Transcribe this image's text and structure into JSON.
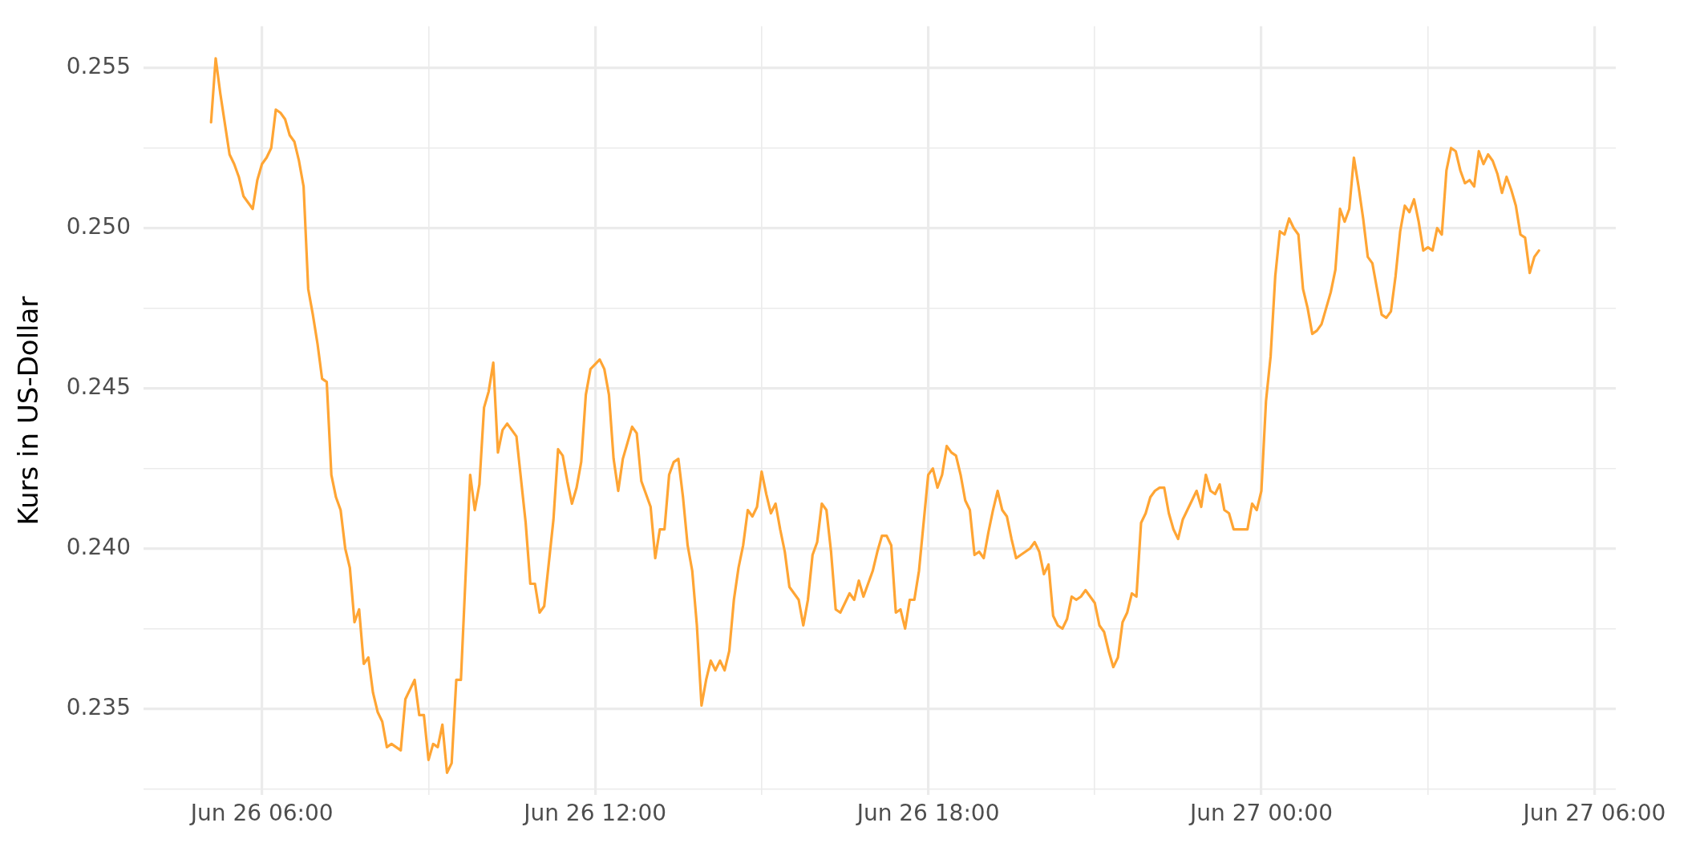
{
  "chart_data": {
    "type": "line",
    "ylabel": "Kurs in US-Dollar",
    "x": [
      "--06-26T05:05",
      "--06-26T05:10",
      "--06-26T05:15",
      "--06-26T05:25",
      "--06-26T05:30",
      "--06-26T05:35",
      "--06-26T05:40",
      "--06-26T05:45",
      "--06-26T05:50",
      "--06-26T05:55",
      "--06-26T06:00",
      "--06-26T06:05",
      "--06-26T06:10",
      "--06-26T06:15",
      "--06-26T06:20",
      "--06-26T06:25",
      "--06-26T06:30",
      "--06-26T06:35",
      "--06-26T06:40",
      "--06-26T06:45",
      "--06-26T06:50",
      "--06-26T06:55",
      "--06-26T07:00",
      "--06-26T07:05",
      "--06-26T07:10",
      "--06-26T07:15",
      "--06-26T07:20",
      "--06-26T07:25",
      "--06-26T07:30",
      "--06-26T07:35",
      "--06-26T07:40",
      "--06-26T07:45",
      "--06-26T07:50",
      "--06-26T07:55",
      "--06-26T08:00",
      "--06-26T08:05",
      "--06-26T08:10",
      "--06-26T08:15",
      "--06-26T08:20",
      "--06-26T08:25",
      "--06-26T08:30",
      "--06-26T08:35",
      "--06-26T08:40",
      "--06-26T08:45",
      "--06-26T08:50",
      "--06-26T08:55",
      "--06-26T09:00",
      "--06-26T09:05",
      "--06-26T09:10",
      "--06-26T09:15",
      "--06-26T09:20",
      "--06-26T09:25",
      "--06-26T09:30",
      "--06-26T09:35",
      "--06-26T09:45",
      "--06-26T09:50",
      "--06-26T09:55",
      "--06-26T10:00",
      "--06-26T10:05",
      "--06-26T10:10",
      "--06-26T10:15",
      "--06-26T10:20",
      "--06-26T10:25",
      "--06-26T10:30",
      "--06-26T10:35",
      "--06-26T10:45",
      "--06-26T10:50",
      "--06-26T10:55",
      "--06-26T11:00",
      "--06-26T11:05",
      "--06-26T11:15",
      "--06-26T11:20",
      "--06-26T11:25",
      "--06-26T11:30",
      "--06-26T11:35",
      "--06-26T11:40",
      "--06-26T11:45",
      "--06-26T11:50",
      "--06-26T11:55",
      "--06-26T12:05",
      "--06-26T12:10",
      "--06-26T12:15",
      "--06-26T12:20",
      "--06-26T12:25",
      "--06-26T12:30",
      "--06-26T12:35",
      "--06-26T12:40",
      "--06-26T12:45",
      "--06-26T12:50",
      "--06-26T12:55",
      "--06-26T13:00",
      "--06-26T13:05",
      "--06-26T13:10",
      "--06-26T13:15",
      "--06-26T13:20",
      "--06-26T13:25",
      "--06-26T13:30",
      "--06-26T13:35",
      "--06-26T13:40",
      "--06-26T13:45",
      "--06-26T13:50",
      "--06-26T13:55",
      "--06-26T14:00",
      "--06-26T14:05",
      "--06-26T14:10",
      "--06-26T14:15",
      "--06-26T14:20",
      "--06-26T14:25",
      "--06-26T14:30",
      "--06-26T14:35",
      "--06-26T14:40",
      "--06-26T14:45",
      "--06-26T14:50",
      "--06-26T14:55",
      "--06-26T15:00",
      "--06-26T15:05",
      "--06-26T15:10",
      "--06-26T15:15",
      "--06-26T15:20",
      "--06-26T15:25",
      "--06-26T15:30",
      "--06-26T15:35",
      "--06-26T15:40",
      "--06-26T15:45",
      "--06-26T15:50",
      "--06-26T15:55",
      "--06-26T16:00",
      "--06-26T16:05",
      "--06-26T16:10",
      "--06-26T16:15",
      "--06-26T16:20",
      "--06-26T16:25",
      "--06-26T16:30",
      "--06-26T16:35",
      "--06-26T16:40",
      "--06-26T16:45",
      "--06-26T16:50",
      "--06-26T16:55",
      "--06-26T17:00",
      "--06-26T17:05",
      "--06-26T17:10",
      "--06-26T17:15",
      "--06-26T17:20",
      "--06-26T17:25",
      "--06-26T17:30",
      "--06-26T17:35",
      "--06-26T17:40",
      "--06-26T17:45",
      "--06-26T17:50",
      "--06-26T18:00",
      "--06-26T18:05",
      "--06-26T18:10",
      "--06-26T18:15",
      "--06-26T18:20",
      "--06-26T18:25",
      "--06-26T18:30",
      "--06-26T18:35",
      "--06-26T18:40",
      "--06-26T18:45",
      "--06-26T18:50",
      "--06-26T18:55",
      "--06-26T19:00",
      "--06-26T19:05",
      "--06-26T19:10",
      "--06-26T19:15",
      "--06-26T19:20",
      "--06-26T19:25",
      "--06-26T19:30",
      "--06-26T19:35",
      "--06-26T19:40",
      "--06-26T19:45",
      "--06-26T19:50",
      "--06-26T19:55",
      "--06-26T20:00",
      "--06-26T20:05",
      "--06-26T20:10",
      "--06-26T20:15",
      "--06-26T20:20",
      "--06-26T20:25",
      "--06-26T20:30",
      "--06-26T20:35",
      "--06-26T20:40",
      "--06-26T20:45",
      "--06-26T20:50",
      "--06-26T20:55",
      "--06-26T21:00",
      "--06-26T21:05",
      "--06-26T21:10",
      "--06-26T21:15",
      "--06-26T21:20",
      "--06-26T21:25",
      "--06-26T21:30",
      "--06-26T21:35",
      "--06-26T21:40",
      "--06-26T21:45",
      "--06-26T21:50",
      "--06-26T21:55",
      "--06-26T22:00",
      "--06-26T22:05",
      "--06-26T22:10",
      "--06-26T22:15",
      "--06-26T22:20",
      "--06-26T22:25",
      "--06-26T22:30",
      "--06-26T22:35",
      "--06-26T22:40",
      "--06-26T22:45",
      "--06-26T22:50",
      "--06-26T22:55",
      "--06-26T23:00",
      "--06-26T23:05",
      "--06-26T23:10",
      "--06-26T23:15",
      "--06-26T23:20",
      "--06-26T23:25",
      "--06-26T23:30",
      "--06-26T23:35",
      "--06-26T23:40",
      "--06-26T23:45",
      "--06-26T23:50",
      "--06-26T23:55",
      "--06-27T00:00",
      "--06-27T00:05",
      "--06-27T00:10",
      "--06-27T00:15",
      "--06-27T00:20",
      "--06-27T00:25",
      "--06-27T00:30",
      "--06-27T00:35",
      "--06-27T00:40",
      "--06-27T00:45",
      "--06-27T00:50",
      "--06-27T00:55",
      "--06-27T01:00",
      "--06-27T01:05",
      "--06-27T01:10",
      "--06-27T01:15",
      "--06-27T01:20",
      "--06-27T01:25",
      "--06-27T01:30",
      "--06-27T01:35",
      "--06-27T01:40",
      "--06-27T01:45",
      "--06-27T01:50",
      "--06-27T01:55",
      "--06-27T02:00",
      "--06-27T02:05",
      "--06-27T02:10",
      "--06-27T02:15",
      "--06-27T02:20",
      "--06-27T02:25",
      "--06-27T02:30",
      "--06-27T02:35",
      "--06-27T02:40",
      "--06-27T02:45",
      "--06-27T02:50",
      "--06-27T02:55",
      "--06-27T03:00",
      "--06-27T03:05",
      "--06-27T03:10",
      "--06-27T03:15",
      "--06-27T03:20",
      "--06-27T03:25",
      "--06-27T03:30",
      "--06-27T03:35",
      "--06-27T03:40",
      "--06-27T03:45",
      "--06-27T03:50",
      "--06-27T03:55",
      "--06-27T04:00",
      "--06-27T04:05",
      "--06-27T04:10",
      "--06-27T04:15",
      "--06-27T04:20",
      "--06-27T04:25",
      "--06-27T04:30",
      "--06-27T04:35",
      "--06-27T04:40",
      "--06-27T04:45",
      "--06-27T04:50",
      "--06-27T04:55",
      "--06-27T05:00"
    ],
    "series": [
      {
        "color": "#ffa534",
        "values": [
          0.2533,
          0.2553,
          0.2542,
          0.2523,
          0.252,
          0.2516,
          0.251,
          0.2508,
          0.2506,
          0.2515,
          0.252,
          0.2522,
          0.2525,
          0.2537,
          0.2536,
          0.2534,
          0.2529,
          0.2527,
          0.2521,
          0.2513,
          0.2481,
          0.2473,
          0.2464,
          0.2453,
          0.2452,
          0.2423,
          0.2416,
          0.2412,
          0.24,
          0.2394,
          0.2377,
          0.2381,
          0.2364,
          0.2366,
          0.2355,
          0.2349,
          0.2346,
          0.2338,
          0.2339,
          0.2338,
          0.2337,
          0.2353,
          0.2356,
          0.2359,
          0.2348,
          0.2348,
          0.2334,
          0.2339,
          0.2338,
          0.2345,
          0.233,
          0.2333,
          0.2359,
          0.2359,
          0.2423,
          0.2412,
          0.242,
          0.2444,
          0.2449,
          0.2458,
          0.243,
          0.2437,
          0.2439,
          0.2437,
          0.2435,
          0.2408,
          0.2389,
          0.2389,
          0.238,
          0.2382,
          0.2409,
          0.2431,
          0.2429,
          0.2421,
          0.2414,
          0.2419,
          0.2427,
          0.2448,
          0.2456,
          0.2459,
          0.2456,
          0.2448,
          0.2428,
          0.2418,
          0.2428,
          0.2433,
          0.2438,
          0.2436,
          0.2421,
          0.2417,
          0.2413,
          0.2397,
          0.2406,
          0.2406,
          0.2423,
          0.2427,
          0.2428,
          0.2416,
          0.2401,
          0.2393,
          0.2376,
          0.2351,
          0.2359,
          0.2365,
          0.2362,
          0.2365,
          0.2362,
          0.2368,
          0.2384,
          0.2394,
          0.2401,
          0.2412,
          0.241,
          0.2413,
          0.2424,
          0.2417,
          0.2411,
          0.2414,
          0.2406,
          0.2399,
          0.2388,
          0.2386,
          0.2384,
          0.2376,
          0.2384,
          0.2398,
          0.2402,
          0.2414,
          0.2412,
          0.2399,
          0.2381,
          0.238,
          0.2383,
          0.2386,
          0.2384,
          0.239,
          0.2385,
          0.2389,
          0.2393,
          0.2399,
          0.2404,
          0.2404,
          0.2401,
          0.238,
          0.2381,
          0.2375,
          0.2384,
          0.2384,
          0.2393,
          0.2423,
          0.2425,
          0.2419,
          0.2423,
          0.2432,
          0.243,
          0.2429,
          0.2423,
          0.2415,
          0.2412,
          0.2398,
          0.2399,
          0.2397,
          0.2405,
          0.2412,
          0.2418,
          0.2412,
          0.241,
          0.2403,
          0.2397,
          0.2398,
          0.2399,
          0.24,
          0.2402,
          0.2399,
          0.2392,
          0.2395,
          0.2379,
          0.2376,
          0.2375,
          0.2378,
          0.2385,
          0.2384,
          0.2385,
          0.2387,
          0.2385,
          0.2383,
          0.2376,
          0.2374,
          0.2368,
          0.2363,
          0.2366,
          0.2377,
          0.238,
          0.2386,
          0.2385,
          0.2408,
          0.2411,
          0.2416,
          0.2418,
          0.2419,
          0.2419,
          0.2411,
          0.2406,
          0.2403,
          0.2409,
          0.2412,
          0.2415,
          0.2418,
          0.2413,
          0.2423,
          0.2418,
          0.2417,
          0.242,
          0.2412,
          0.2411,
          0.2406,
          0.2406,
          0.2406,
          0.2406,
          0.2414,
          0.2412,
          0.2418,
          0.2446,
          0.246,
          0.2485,
          0.2499,
          0.2498,
          0.2503,
          0.25,
          0.2498,
          0.2481,
          0.2475,
          0.2467,
          0.2468,
          0.247,
          0.2475,
          0.248,
          0.2487,
          0.2506,
          0.2502,
          0.2506,
          0.2522,
          0.2513,
          0.2503,
          0.2491,
          0.2489,
          0.2481,
          0.2473,
          0.2472,
          0.2474,
          0.2485,
          0.2499,
          0.2507,
          0.2505,
          0.2509,
          0.2502,
          0.2493,
          0.2494,
          0.2493,
          0.25,
          0.2498,
          0.2518,
          0.2525,
          0.2524,
          0.2518,
          0.2514,
          0.2515,
          0.2513,
          0.2524,
          0.252,
          0.2523,
          0.2521,
          0.2517,
          0.2511,
          0.2516,
          0.2512,
          0.2507,
          0.2498,
          0.2497,
          0.2486,
          0.2491,
          0.2493
        ]
      }
    ],
    "xlim": [
      "--06-26T03:52",
      "--06-27T06:23"
    ],
    "xticks": [
      {
        "value": "--06-26T06:00",
        "label": "Jun 26 06:00"
      },
      {
        "value": "--06-26T09:00",
        "label": null
      },
      {
        "value": "--06-26T12:00",
        "label": "Jun 26 12:00"
      },
      {
        "value": "--06-26T15:00",
        "label": null
      },
      {
        "value": "--06-26T18:00",
        "label": "Jun 26 18:00"
      },
      {
        "value": "--06-26T21:00",
        "label": null
      },
      {
        "value": "--06-27T00:00",
        "label": "Jun 27 00:00"
      },
      {
        "value": "--06-27T03:00",
        "label": null
      },
      {
        "value": "--06-27T06:00",
        "label": "Jun 27 06:00"
      }
    ],
    "ylim": [
      0.2323,
      0.2563
    ],
    "yticks": [
      {
        "value": 0.2325,
        "label": null
      },
      {
        "value": 0.235,
        "label": "0.235"
      },
      {
        "value": 0.2375,
        "label": null
      },
      {
        "value": 0.24,
        "label": "0.240"
      },
      {
        "value": 0.2425,
        "label": null
      },
      {
        "value": 0.245,
        "label": "0.245"
      },
      {
        "value": 0.2475,
        "label": null
      },
      {
        "value": 0.25,
        "label": "0.250"
      },
      {
        "value": 0.2525,
        "label": null
      },
      {
        "value": 0.255,
        "label": "0.255"
      }
    ],
    "grid": true,
    "legend": false,
    "marker": "none",
    "line_style": "solid"
  }
}
